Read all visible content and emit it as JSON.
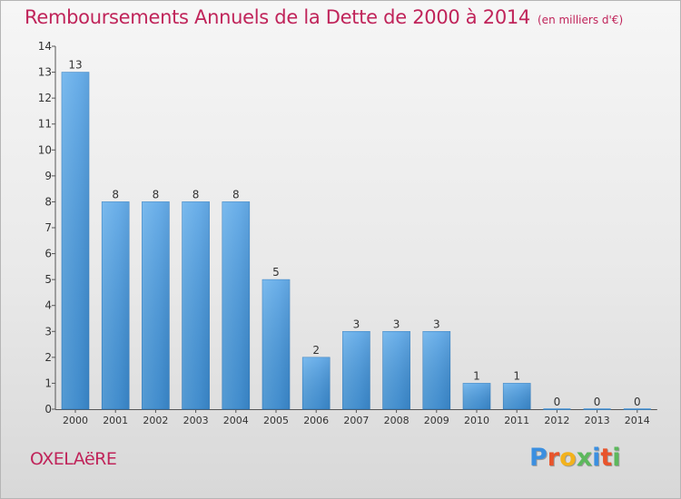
{
  "chart_data": {
    "type": "bar",
    "title": "Remboursements Annuels de la Dette de 2000 à 2014",
    "subtitle": "(en milliers d'€)",
    "xlabel": "",
    "ylabel": "",
    "categories": [
      "2000",
      "2001",
      "2002",
      "2003",
      "2004",
      "2005",
      "2006",
      "2007",
      "2008",
      "2009",
      "2010",
      "2011",
      "2012",
      "2013",
      "2014"
    ],
    "values": [
      13,
      8,
      8,
      8,
      8,
      5,
      2,
      3,
      3,
      3,
      1,
      1,
      0,
      0,
      0
    ],
    "data_labels": [
      "13",
      "8",
      "8",
      "8",
      "8",
      "5",
      "2",
      "3",
      "3",
      "3",
      "1",
      "1",
      "0",
      "0",
      "0"
    ],
    "ylim": [
      0,
      14
    ],
    "yticks": [
      "0",
      "1",
      "2",
      "3",
      "4",
      "5",
      "6",
      "7",
      "8",
      "9",
      "10",
      "11",
      "12",
      "13",
      "14"
    ],
    "grid": false,
    "legend": "none",
    "bar_color": "#3d8fd6",
    "bar_color_light": "#5dabea"
  },
  "place_name": "OXELAëRE",
  "brand": {
    "name": "Proxiti",
    "letters": [
      {
        "char": "P",
        "color": "#3b8fe0"
      },
      {
        "char": "r",
        "color": "#e8542c"
      },
      {
        "char": "o",
        "color": "#f3b21c"
      },
      {
        "char": "x",
        "color": "#5cb85c"
      },
      {
        "char": "i",
        "color": "#3b8fe0"
      },
      {
        "char": "t",
        "color": "#e8542c"
      },
      {
        "char": "i",
        "color": "#5cb85c"
      }
    ]
  },
  "colors": {
    "title": "#c0245a",
    "axis": "#555555",
    "label_text": "#333333"
  }
}
